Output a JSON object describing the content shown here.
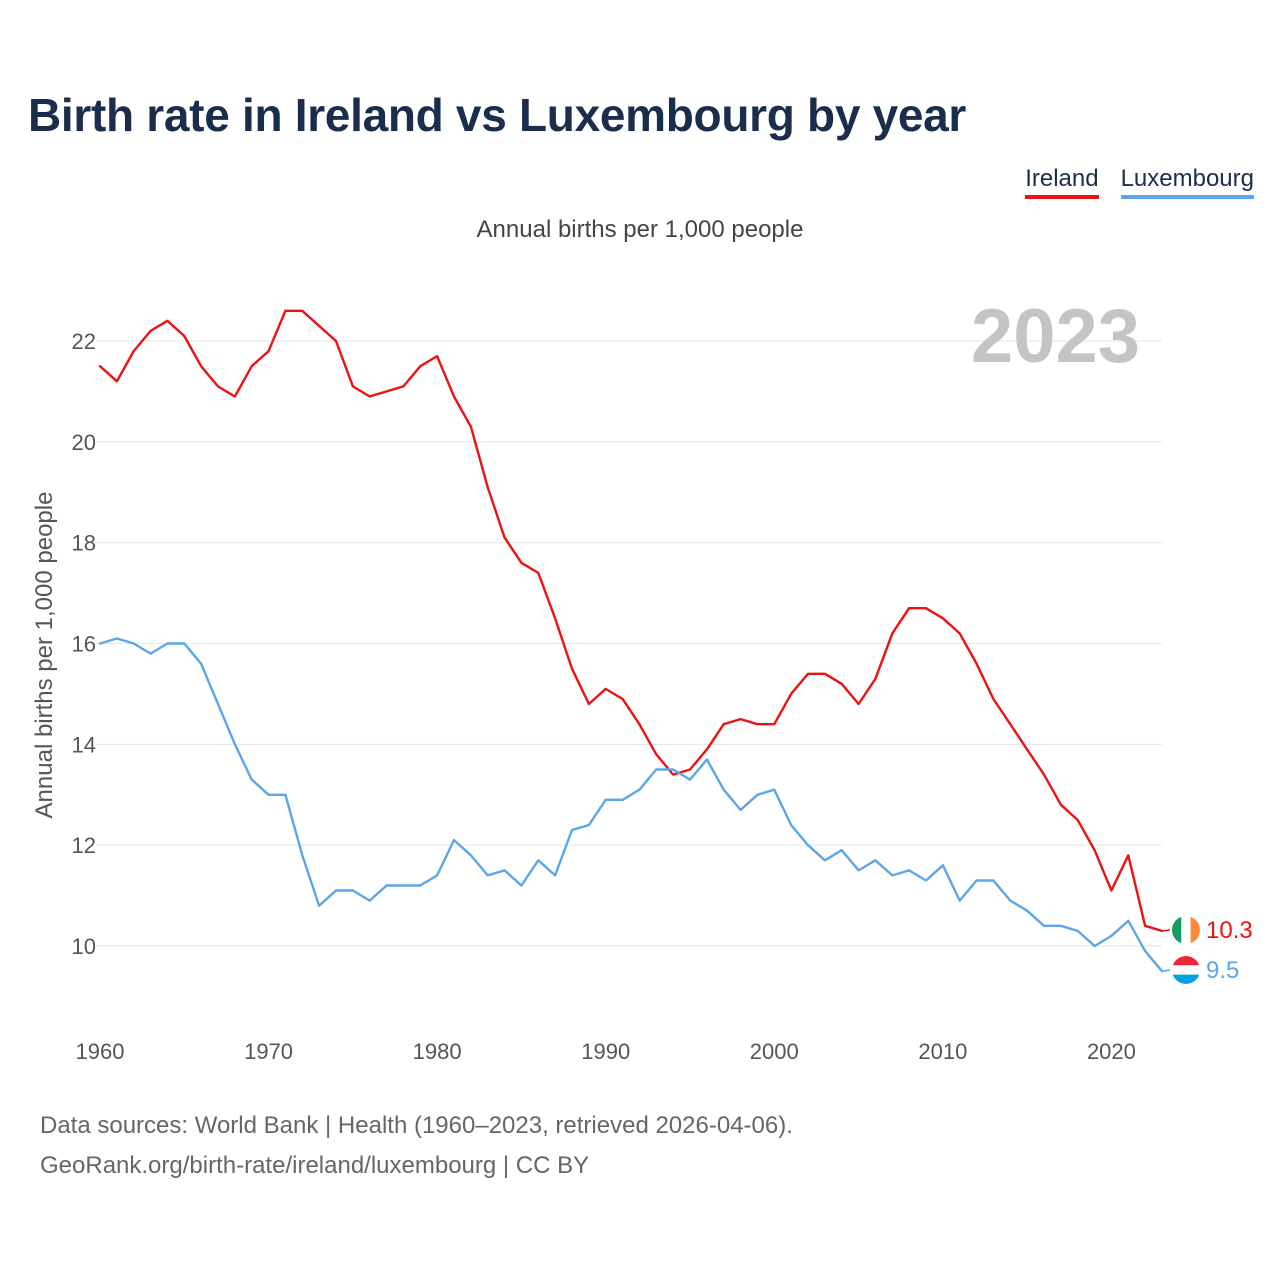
{
  "title": "Birth rate in Ireland vs Luxembourg by year",
  "subtitle": "Annual births per 1,000 people",
  "legend": [
    {
      "name": "Ireland",
      "color": "#ee1111"
    },
    {
      "name": "Luxembourg",
      "color": "#5ca6e8"
    }
  ],
  "footer": {
    "line1": "Data sources: World Bank | Health (1960–2023, retrieved 2026-04-06).",
    "line2": "GeoRank.org/birth-rate/ireland/luxembourg | CC BY"
  },
  "chart_data": {
    "type": "line",
    "title": "Birth rate in Ireland vs Luxembourg by year",
    "ylabel": "Annual births per 1,000 people",
    "xlabel": "",
    "year_label": "2023",
    "xlim": [
      1960,
      2023
    ],
    "ylim": [
      9,
      23
    ],
    "xticks": [
      1960,
      1970,
      1980,
      1990,
      2000,
      2010,
      2020
    ],
    "yticks": [
      10,
      12,
      14,
      16,
      18,
      20,
      22
    ],
    "grid": true,
    "x": [
      1960,
      1961,
      1962,
      1963,
      1964,
      1965,
      1966,
      1967,
      1968,
      1969,
      1970,
      1971,
      1972,
      1973,
      1974,
      1975,
      1976,
      1977,
      1978,
      1979,
      1980,
      1981,
      1982,
      1983,
      1984,
      1985,
      1986,
      1987,
      1988,
      1989,
      1990,
      1991,
      1992,
      1993,
      1994,
      1995,
      1996,
      1997,
      1998,
      1999,
      2000,
      2001,
      2002,
      2003,
      2004,
      2005,
      2006,
      2007,
      2008,
      2009,
      2010,
      2011,
      2012,
      2013,
      2014,
      2015,
      2016,
      2017,
      2018,
      2019,
      2020,
      2021,
      2022,
      2023
    ],
    "series": [
      {
        "name": "Ireland",
        "color": "#ee1111",
        "end_label": "10.3",
        "values": [
          21.5,
          21.2,
          21.8,
          22.2,
          22.4,
          22.1,
          21.5,
          21.1,
          20.9,
          21.5,
          21.8,
          22.6,
          22.6,
          22.3,
          22.0,
          21.1,
          20.9,
          21.0,
          21.1,
          21.5,
          21.7,
          20.9,
          20.3,
          19.1,
          18.1,
          17.6,
          17.4,
          16.5,
          15.5,
          14.8,
          15.1,
          14.9,
          14.4,
          13.8,
          13.4,
          13.5,
          13.9,
          14.4,
          14.5,
          14.4,
          14.4,
          15.0,
          15.4,
          15.4,
          15.2,
          14.8,
          15.3,
          16.2,
          16.7,
          16.7,
          16.5,
          16.2,
          15.6,
          14.9,
          14.4,
          13.9,
          13.4,
          12.8,
          12.5,
          11.9,
          11.1,
          11.8,
          10.4,
          10.3
        ]
      },
      {
        "name": "Luxembourg",
        "color": "#5ca6e8",
        "end_label": "9.5",
        "values": [
          16.0,
          16.1,
          16.0,
          15.8,
          16.0,
          16.0,
          15.6,
          14.8,
          14.0,
          13.3,
          13.0,
          13.0,
          11.8,
          10.8,
          11.1,
          11.1,
          10.9,
          11.2,
          11.2,
          11.2,
          11.4,
          12.1,
          11.8,
          11.4,
          11.5,
          11.2,
          11.7,
          11.4,
          12.3,
          12.4,
          12.9,
          12.9,
          13.1,
          13.5,
          13.5,
          13.3,
          13.7,
          13.1,
          12.7,
          13.0,
          13.1,
          12.4,
          12.0,
          11.7,
          11.9,
          11.5,
          11.7,
          11.4,
          11.5,
          11.3,
          11.6,
          10.9,
          11.3,
          11.3,
          10.9,
          10.7,
          10.4,
          10.4,
          10.3,
          10.0,
          10.2,
          10.5,
          9.9,
          9.5
        ]
      }
    ]
  }
}
